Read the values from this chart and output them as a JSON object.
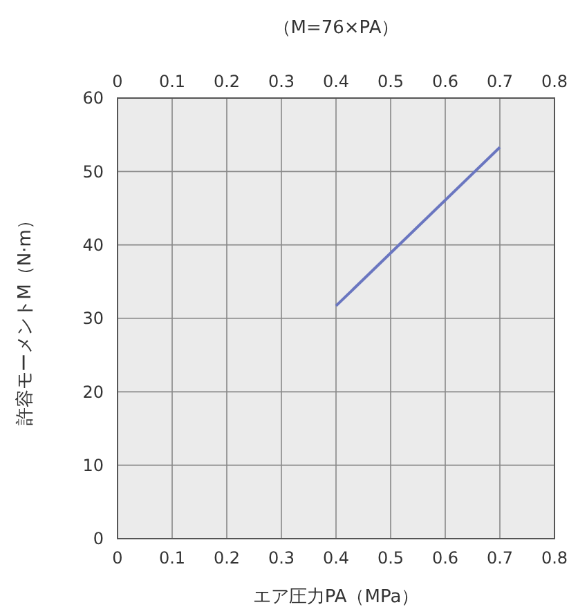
{
  "chart_data": {
    "type": "line",
    "title": "（M=76×PA）",
    "xlabel": "エア圧力PA（MPa）",
    "ylabel": "許容モーメントM（N·m）",
    "series": [
      {
        "color": "#6a76c0",
        "x": [
          0.4,
          0.7
        ],
        "values": [
          31.7,
          53.3
        ]
      }
    ],
    "xlim": [
      0,
      0.8
    ],
    "xticks": [
      0,
      0.1,
      0.2,
      0.3,
      0.4,
      0.5,
      0.6,
      0.7,
      0.8
    ],
    "x2lim": [
      0,
      0.8
    ],
    "x2ticks": [
      0,
      0.1,
      0.2,
      0.3,
      0.4,
      0.5,
      0.6,
      0.7,
      0.8
    ],
    "ylim": [
      0,
      60
    ],
    "yticks": [
      0,
      10,
      20,
      30,
      40,
      50,
      60
    ],
    "grid": true,
    "line_style": "solid",
    "marker": "none"
  }
}
